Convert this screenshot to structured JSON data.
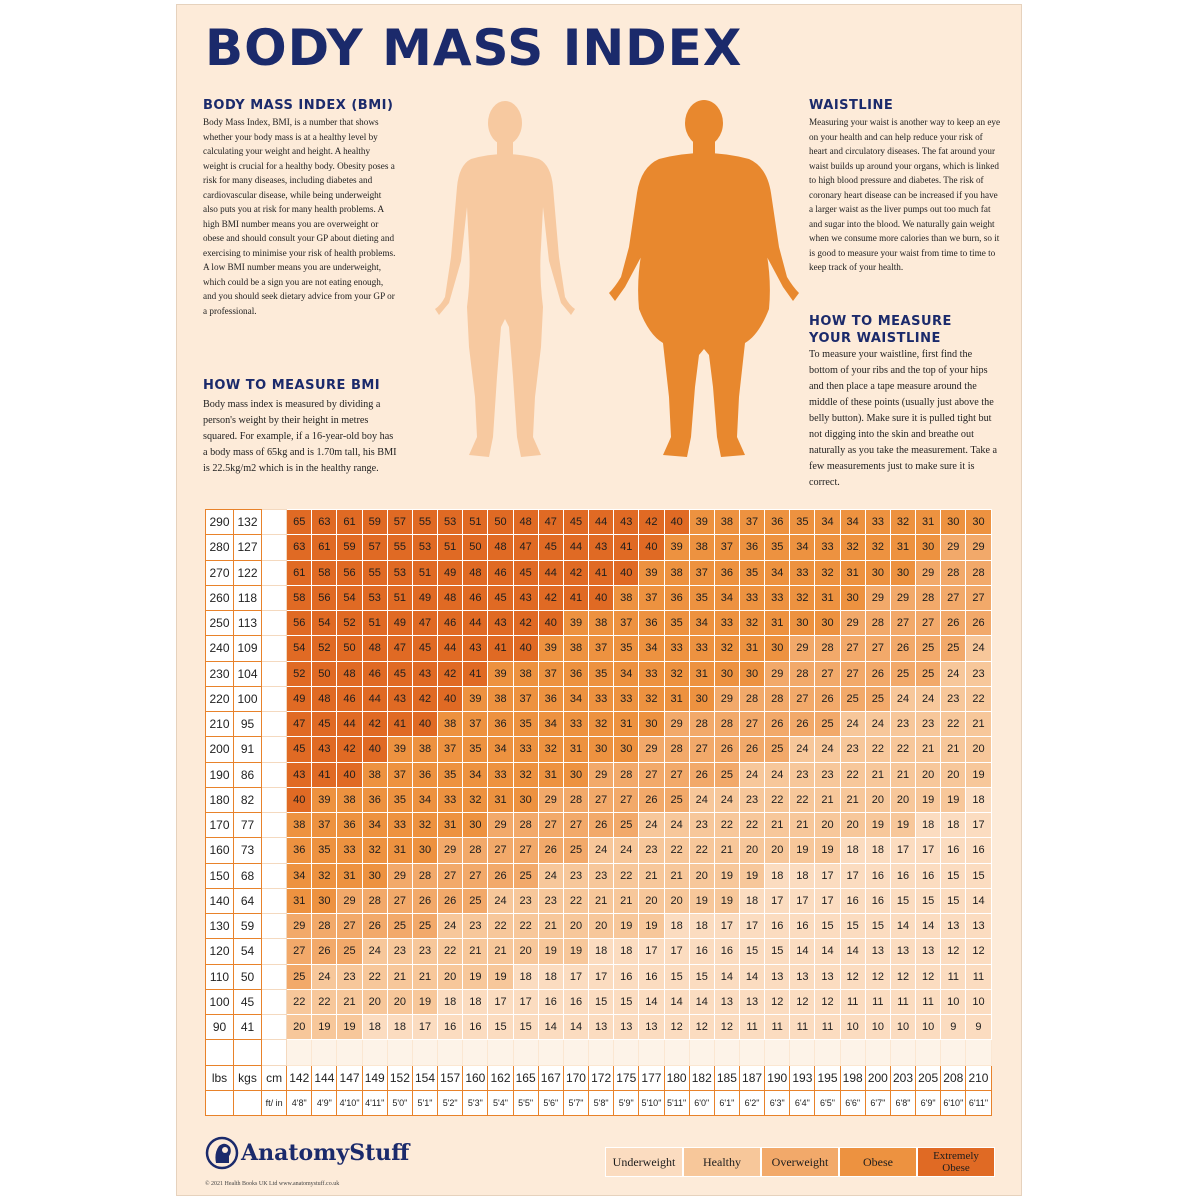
{
  "title": "BODY MASS INDEX",
  "sections": {
    "bmi": {
      "heading": "BODY MASS INDEX (BMI)",
      "text": "Body Mass Index, BMI, is a number that shows whether your body mass is at a healthy level by calculating your weight and height. A healthy weight is crucial for a healthy body. Obesity poses a risk for many diseases, including diabetes and cardiovascular disease, while being underweight also puts you at risk for many health problems. A high BMI number means you are overweight or obese and should consult your GP about dieting and exercising to minimise your risk of health problems. A low BMI number means you are underweight, which could be a sign you are not eating enough, and you should seek dietary advice from your GP or a professional."
    },
    "measure_bmi": {
      "heading": "HOW TO MEASURE BMI",
      "text": "Body mass index is measured by dividing a person's weight by their height in metres squared. For example, if a 16-year-old boy has a body mass of 65kg and is 1.70m tall, his BMI is 22.5kg/m2 which is in the healthy range."
    },
    "waistline": {
      "heading": "WAISTLINE",
      "text": "Measuring your waist is another way to keep an eye on your health and can help reduce your risk of heart and circulatory diseases. The fat around your waist builds up around your organs, which is linked to high blood pressure and diabetes. The risk of coronary heart disease can be increased if you have a larger waist as the liver pumps out too much fat and sugar into the blood. We naturally gain weight when we consume more calories than we burn, so it is good to measure your waist from time to time to keep track of your health."
    },
    "measure_waist": {
      "heading_line1": "HOW TO MEASURE",
      "heading_line2": "YOUR WAISTLINE",
      "text": "To measure your waistline, first find the bottom of your ribs and the top of your hips and then place a tape measure around the middle of these points (usually just above the belly button). Make sure it is pulled tight but not digging into the skin and breathe out naturally as you take the measurement. Take a few measurements just to make sure it is correct."
    }
  },
  "colors": {
    "navy": "#1b2a6b",
    "slim_figure": "#f7c9a0",
    "obese_figure": "#e8882e",
    "underweight": "#fbdcc0",
    "healthy": "#f7c79a",
    "overweight": "#f2a96a",
    "obese": "#ed9240",
    "extremely_obese": "#e06a24"
  },
  "table": {
    "headers": {
      "lbs": "lbs",
      "kgs": "kgs",
      "cm": "cm",
      "ft_in": "ft/ in"
    },
    "cm": [
      "142",
      "144",
      "147",
      "149",
      "152",
      "154",
      "157",
      "160",
      "162",
      "165",
      "167",
      "170",
      "172",
      "175",
      "177",
      "180",
      "182",
      "185",
      "187",
      "190",
      "193",
      "195",
      "198",
      "200",
      "203",
      "205",
      "208",
      "210"
    ],
    "ft_in": [
      "4'8\"",
      "4'9\"",
      "4'10\"",
      "4'11\"",
      "5'0\"",
      "5'1\"",
      "5'2\"",
      "5'3\"",
      "5'4\"",
      "5'5\"",
      "5'6\"",
      "5'7\"",
      "5'8\"",
      "5'9\"",
      "5'10\"",
      "5'11\"",
      "6'0\"",
      "6'1\"",
      "6'2\"",
      "6'3\"",
      "6'4\"",
      "6'5\"",
      "6'6\"",
      "6'7\"",
      "6'8\"",
      "6'9\"",
      "6'10\"",
      "6'11\""
    ],
    "rows": [
      {
        "lbs": "290",
        "kgs": "132",
        "bmi": [
          65,
          63,
          61,
          59,
          57,
          55,
          53,
          51,
          50,
          48,
          47,
          45,
          44,
          43,
          42,
          40,
          39,
          38,
          37,
          36,
          35,
          34,
          34,
          33,
          32,
          31,
          30,
          30
        ]
      },
      {
        "lbs": "280",
        "kgs": "127",
        "bmi": [
          63,
          61,
          59,
          57,
          55,
          53,
          51,
          50,
          48,
          47,
          45,
          44,
          43,
          41,
          40,
          39,
          38,
          37,
          36,
          35,
          34,
          33,
          32,
          32,
          31,
          30,
          29,
          29
        ]
      },
      {
        "lbs": "270",
        "kgs": "122",
        "bmi": [
          61,
          58,
          56,
          55,
          53,
          51,
          49,
          48,
          46,
          45,
          44,
          42,
          41,
          40,
          39,
          38,
          37,
          36,
          35,
          34,
          33,
          32,
          31,
          30,
          30,
          29,
          28,
          28
        ]
      },
      {
        "lbs": "260",
        "kgs": "118",
        "bmi": [
          58,
          56,
          54,
          53,
          51,
          49,
          48,
          46,
          45,
          43,
          42,
          41,
          40,
          38,
          37,
          36,
          35,
          34,
          33,
          33,
          32,
          31,
          30,
          29,
          29,
          28,
          27,
          27
        ]
      },
      {
        "lbs": "250",
        "kgs": "113",
        "bmi": [
          56,
          54,
          52,
          51,
          49,
          47,
          46,
          44,
          43,
          42,
          40,
          39,
          38,
          37,
          36,
          35,
          34,
          33,
          32,
          31,
          30,
          30,
          29,
          28,
          27,
          27,
          26,
          26
        ]
      },
      {
        "lbs": "240",
        "kgs": "109",
        "bmi": [
          54,
          52,
          50,
          48,
          47,
          45,
          44,
          43,
          41,
          40,
          39,
          38,
          37,
          35,
          34,
          33,
          33,
          32,
          31,
          30,
          29,
          28,
          27,
          27,
          26,
          25,
          25,
          24
        ]
      },
      {
        "lbs": "230",
        "kgs": "104",
        "bmi": [
          52,
          50,
          48,
          46,
          45,
          43,
          42,
          41,
          39,
          38,
          37,
          36,
          35,
          34,
          33,
          32,
          31,
          30,
          30,
          29,
          28,
          27,
          27,
          26,
          25,
          25,
          24,
          23
        ]
      },
      {
        "lbs": "220",
        "kgs": "100",
        "bmi": [
          49,
          48,
          46,
          44,
          43,
          42,
          40,
          39,
          38,
          37,
          36,
          34,
          33,
          33,
          32,
          31,
          30,
          29,
          28,
          28,
          27,
          26,
          25,
          25,
          24,
          24,
          23,
          22
        ]
      },
      {
        "lbs": "210",
        "kgs": "95",
        "bmi": [
          47,
          45,
          44,
          42,
          41,
          40,
          38,
          37,
          36,
          35,
          34,
          33,
          32,
          31,
          30,
          29,
          28,
          28,
          27,
          26,
          26,
          25,
          24,
          24,
          23,
          23,
          22,
          21
        ]
      },
      {
        "lbs": "200",
        "kgs": "91",
        "bmi": [
          45,
          43,
          42,
          40,
          39,
          38,
          37,
          35,
          34,
          33,
          32,
          31,
          30,
          30,
          29,
          28,
          27,
          26,
          26,
          25,
          24,
          24,
          23,
          22,
          22,
          21,
          21,
          20
        ]
      },
      {
        "lbs": "190",
        "kgs": "86",
        "bmi": [
          43,
          41,
          40,
          38,
          37,
          36,
          35,
          34,
          33,
          32,
          31,
          30,
          29,
          28,
          27,
          27,
          26,
          25,
          24,
          24,
          23,
          23,
          22,
          21,
          21,
          20,
          20,
          19
        ]
      },
      {
        "lbs": "180",
        "kgs": "82",
        "bmi": [
          40,
          39,
          38,
          36,
          35,
          34,
          33,
          32,
          31,
          30,
          29,
          28,
          27,
          27,
          26,
          25,
          24,
          24,
          23,
          22,
          22,
          21,
          21,
          20,
          20,
          19,
          19,
          18
        ]
      },
      {
        "lbs": "170",
        "kgs": "77",
        "bmi": [
          38,
          37,
          36,
          34,
          33,
          32,
          31,
          30,
          29,
          28,
          27,
          27,
          26,
          25,
          24,
          24,
          23,
          22,
          22,
          21,
          21,
          20,
          20,
          19,
          19,
          18,
          18,
          17
        ]
      },
      {
        "lbs": "160",
        "kgs": "73",
        "bmi": [
          36,
          35,
          33,
          32,
          31,
          30,
          29,
          28,
          27,
          27,
          26,
          25,
          24,
          24,
          23,
          22,
          22,
          21,
          20,
          20,
          19,
          19,
          18,
          18,
          17,
          17,
          16,
          16
        ]
      },
      {
        "lbs": "150",
        "kgs": "68",
        "bmi": [
          34,
          32,
          31,
          30,
          29,
          28,
          27,
          27,
          26,
          25,
          24,
          23,
          23,
          22,
          21,
          21,
          20,
          19,
          19,
          18,
          18,
          17,
          17,
          16,
          16,
          16,
          15,
          15
        ]
      },
      {
        "lbs": "140",
        "kgs": "64",
        "bmi": [
          31,
          30,
          29,
          28,
          27,
          26,
          26,
          25,
          24,
          23,
          23,
          22,
          21,
          21,
          20,
          20,
          19,
          19,
          18,
          17,
          17,
          17,
          16,
          16,
          15,
          15,
          15,
          14
        ]
      },
      {
        "lbs": "130",
        "kgs": "59",
        "bmi": [
          29,
          28,
          27,
          26,
          25,
          25,
          24,
          23,
          22,
          22,
          21,
          20,
          20,
          19,
          19,
          18,
          18,
          17,
          17,
          16,
          16,
          15,
          15,
          15,
          14,
          14,
          13,
          13
        ]
      },
      {
        "lbs": "120",
        "kgs": "54",
        "bmi": [
          27,
          26,
          25,
          24,
          23,
          23,
          22,
          21,
          21,
          20,
          19,
          19,
          18,
          18,
          17,
          17,
          16,
          16,
          15,
          15,
          14,
          14,
          14,
          13,
          13,
          13,
          12,
          12
        ]
      },
      {
        "lbs": "110",
        "kgs": "50",
        "bmi": [
          25,
          24,
          23,
          22,
          21,
          21,
          20,
          19,
          19,
          18,
          18,
          17,
          17,
          16,
          16,
          15,
          15,
          14,
          14,
          13,
          13,
          13,
          12,
          12,
          12,
          12,
          11,
          11
        ]
      },
      {
        "lbs": "100",
        "kgs": "45",
        "bmi": [
          22,
          22,
          21,
          20,
          20,
          19,
          18,
          18,
          17,
          17,
          16,
          16,
          15,
          15,
          14,
          14,
          14,
          13,
          13,
          12,
          12,
          12,
          11,
          11,
          11,
          11,
          10,
          10
        ]
      },
      {
        "lbs": "90",
        "kgs": "41",
        "bmi": [
          20,
          19,
          19,
          18,
          18,
          17,
          16,
          16,
          15,
          15,
          14,
          14,
          13,
          13,
          13,
          12,
          12,
          12,
          11,
          11,
          11,
          11,
          10,
          10,
          10,
          10,
          9,
          9
        ]
      }
    ]
  },
  "brand": {
    "name_part1": "Anatomy",
    "name_part2": "Stuff",
    "copyright": "© 2021 Health Books UK Ltd  www.anatomystuff.co.uk"
  },
  "legend": [
    {
      "label": "Underweight",
      "key": "underweight"
    },
    {
      "label": "Healthy",
      "key": "healthy"
    },
    {
      "label": "Overweight",
      "key": "overweight"
    },
    {
      "label": "Obese",
      "key": "obese"
    },
    {
      "label": "Extremely Obese",
      "key": "extremely_obese"
    }
  ]
}
